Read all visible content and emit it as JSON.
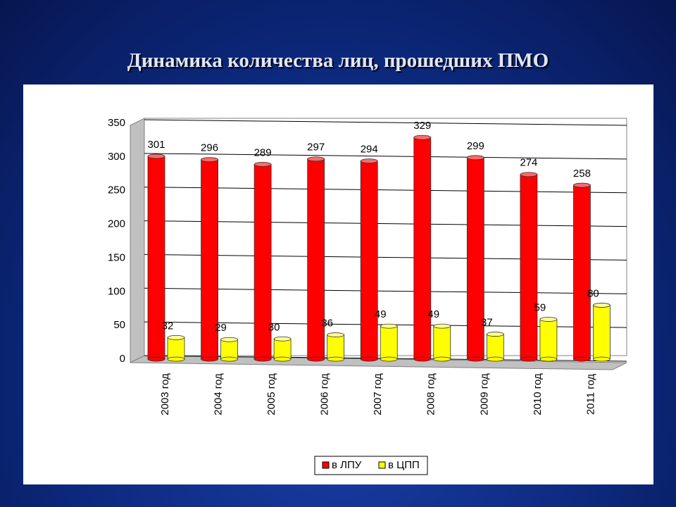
{
  "chart_data": {
    "type": "bar",
    "title": "Динамика количества лиц, прошедших ПМО",
    "categories": [
      "2003 год",
      "2004 год",
      "2005 год",
      "2006 год",
      "2007 год",
      "2008 год",
      "2009 год",
      "2010 год",
      "2011 год"
    ],
    "series": [
      {
        "name": "в ЛПУ",
        "color": "#ff0000",
        "values": [
          301,
          296,
          289,
          297,
          294,
          329,
          299,
          274,
          258
        ]
      },
      {
        "name": "в ЦПП",
        "color": "#ffff00",
        "values": [
          32,
          29,
          30,
          36,
          49,
          49,
          37,
          59,
          80
        ]
      }
    ],
    "ylim": [
      0,
      350
    ],
    "yticks": [
      0,
      50,
      100,
      150,
      200,
      250,
      300,
      350
    ],
    "grid": true,
    "legend": "bottom"
  }
}
